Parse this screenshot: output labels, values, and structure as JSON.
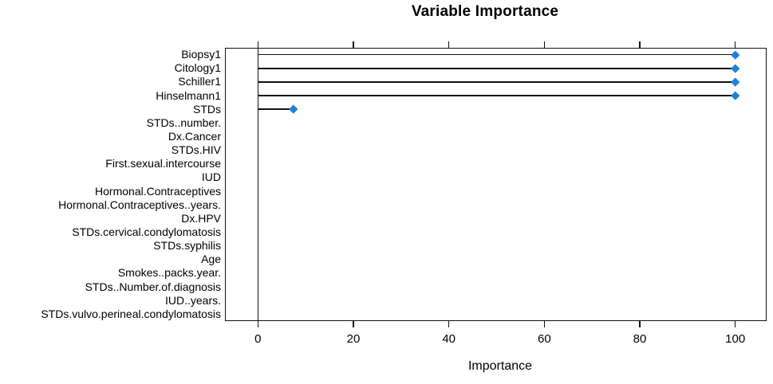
{
  "page": {
    "background_color": "#ffffff",
    "text_color": "#000000"
  },
  "chart_data": {
    "type": "bar",
    "style": "lollipop-dotchart",
    "orientation": "horizontal",
    "title": "Variable Importance",
    "xlabel": "Importance",
    "ylabel": "",
    "categories": [
      "Biopsy1",
      "Citology1",
      "Schiller1",
      "Hinselmann1",
      "STDs",
      "STDs..number.",
      "Dx.Cancer",
      "STDs.HIV",
      "First.sexual.intercourse",
      "IUD",
      "Hormonal.Contraceptives",
      "Hormonal.Contraceptives..years.",
      "Dx.HPV",
      "STDs.cervical.condylomatosis",
      "STDs.syphilis",
      "Age",
      "Smokes..packs.year.",
      "STDs..Number.of.diagnosis",
      "IUD..years.",
      "STDs.vulvo.perineal.condylomatosis"
    ],
    "values": [
      100,
      100,
      100,
      100,
      7.5,
      0,
      0,
      0,
      0,
      0,
      0,
      0,
      0,
      0,
      0,
      0,
      0,
      0,
      0,
      0
    ],
    "xticks": [
      0,
      20,
      40,
      60,
      80,
      100
    ],
    "xlim": [
      -6.9,
      106.6
    ],
    "grid": false,
    "legend": false,
    "axis_sides": [
      "top",
      "bottom"
    ],
    "reference_line_x": 0,
    "point_shape": "diamond",
    "point_color": "#1E82DC",
    "line_color": "#111111"
  }
}
